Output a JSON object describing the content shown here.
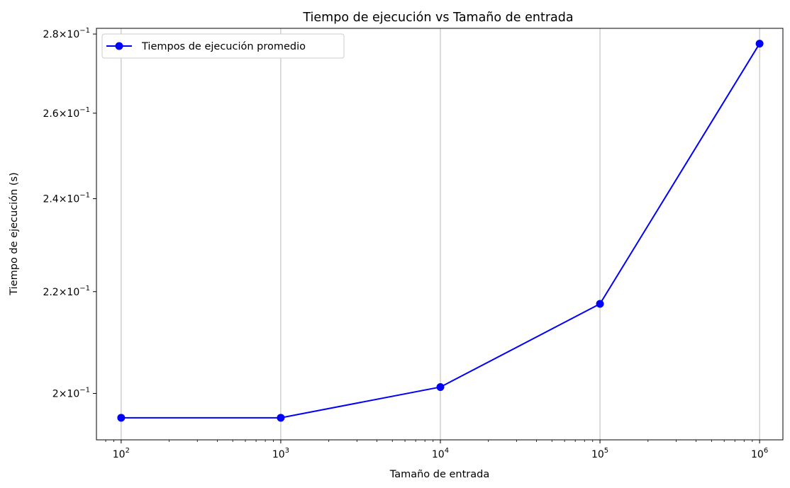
{
  "chart_data": {
    "type": "line",
    "title": "Tiempo de ejecución vs Tamaño de entrada",
    "xlabel": "Tamaño de entrada",
    "ylabel": "Tiempo de ejecución (s)",
    "x_scale": "log",
    "y_scale": "log",
    "xlim": [
      70,
      1400000
    ],
    "ylim": [
      0.1915,
      0.2815
    ],
    "grid": "vertical major",
    "legend_location": "upper-left",
    "x_ticks": [
      {
        "value": 100,
        "base": "10",
        "exp": "2"
      },
      {
        "value": 1000,
        "base": "10",
        "exp": "3"
      },
      {
        "value": 10000,
        "base": "10",
        "exp": "4"
      },
      {
        "value": 100000,
        "base": "10",
        "exp": "5"
      },
      {
        "value": 1000000,
        "base": "10",
        "exp": "6"
      }
    ],
    "y_ticks": [
      {
        "value": 0.2,
        "mantissa": "2",
        "exp": "−1"
      },
      {
        "value": 0.22,
        "mantissa": "2.2",
        "exp": "−1"
      },
      {
        "value": 0.24,
        "mantissa": "2.4",
        "exp": "−1"
      },
      {
        "value": 0.26,
        "mantissa": "2.6",
        "exp": "−1"
      },
      {
        "value": 0.28,
        "mantissa": "2.8",
        "exp": "−1"
      }
    ],
    "series": [
      {
        "name": "Tiempos de ejecución promedio",
        "color": "#0000ff",
        "marker": "circle",
        "x": [
          100,
          1000,
          10000,
          100000,
          1000000
        ],
        "y": [
          0.1955,
          0.1955,
          0.2012,
          0.2175,
          0.2775
        ]
      }
    ]
  }
}
